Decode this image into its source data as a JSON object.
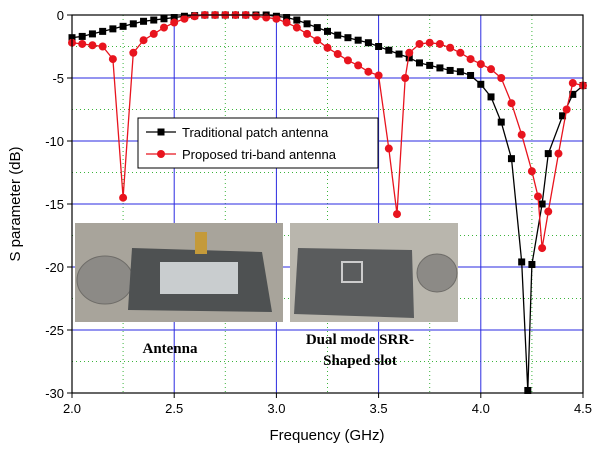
{
  "chart_data": {
    "type": "line",
    "xlabel": "Frequency (GHz)",
    "ylabel": "S parameter (dB)",
    "xlim": [
      2.0,
      4.5
    ],
    "xticks": [
      {
        "value": 2.0,
        "label": "2.0"
      },
      {
        "value": 2.5,
        "label": "2.5"
      },
      {
        "value": 3.0,
        "label": "3.0"
      },
      {
        "value": 3.5,
        "label": "3.5"
      },
      {
        "value": 4.0,
        "label": "4.0"
      },
      {
        "value": 4.5,
        "label": "4.5"
      }
    ],
    "ylim": [
      -30,
      0
    ],
    "yticks": [
      0,
      -5,
      -10,
      -15,
      -20,
      -25,
      -30
    ],
    "grid": true,
    "annotations": [
      "Antenna",
      "Dual mode SRR-",
      "Shaped slot"
    ],
    "series": [
      {
        "name": "Traditional patch antenna",
        "color": "#000000",
        "marker": "square",
        "x": [
          2.0,
          2.05,
          2.1,
          2.15,
          2.2,
          2.25,
          2.3,
          2.35,
          2.4,
          2.45,
          2.5,
          2.55,
          2.6,
          2.65,
          2.7,
          2.75,
          2.8,
          2.85,
          2.9,
          2.95,
          3.0,
          3.05,
          3.1,
          3.15,
          3.2,
          3.25,
          3.3,
          3.35,
          3.4,
          3.45,
          3.5,
          3.55,
          3.6,
          3.65,
          3.7,
          3.75,
          3.8,
          3.85,
          3.9,
          3.95,
          4.0,
          4.05,
          4.1,
          4.15,
          4.2,
          4.23,
          4.25,
          4.3,
          4.33,
          4.4,
          4.45,
          4.5
        ],
        "values": [
          -1.8,
          -1.7,
          -1.5,
          -1.3,
          -1.1,
          -0.9,
          -0.7,
          -0.5,
          -0.4,
          -0.3,
          -0.2,
          -0.1,
          -0.05,
          0,
          0,
          0,
          0,
          0,
          0,
          0,
          -0.1,
          -0.2,
          -0.4,
          -0.7,
          -1.0,
          -1.3,
          -1.6,
          -1.8,
          -2.0,
          -2.2,
          -2.5,
          -2.8,
          -3.1,
          -3.4,
          -3.8,
          -4.0,
          -4.2,
          -4.4,
          -4.5,
          -4.8,
          -5.5,
          -6.5,
          -8.5,
          -11.4,
          -19.6,
          -29.8,
          -19.8,
          -15.0,
          -11.0,
          -8.0,
          -6.3,
          -5.6
        ]
      },
      {
        "name": "Proposed tri-band antenna",
        "color": "#e8141e",
        "marker": "circle",
        "x": [
          2.0,
          2.05,
          2.1,
          2.15,
          2.2,
          2.25,
          2.3,
          2.35,
          2.4,
          2.45,
          2.5,
          2.55,
          2.6,
          2.65,
          2.7,
          2.75,
          2.8,
          2.85,
          2.9,
          2.95,
          3.0,
          3.05,
          3.1,
          3.15,
          3.2,
          3.25,
          3.3,
          3.35,
          3.4,
          3.45,
          3.5,
          3.55,
          3.59,
          3.63,
          3.65,
          3.7,
          3.75,
          3.8,
          3.85,
          3.9,
          3.95,
          4.0,
          4.05,
          4.1,
          4.15,
          4.2,
          4.25,
          4.28,
          4.3,
          4.33,
          4.38,
          4.42,
          4.45,
          4.5
        ],
        "values": [
          -2.2,
          -2.3,
          -2.4,
          -2.5,
          -3.5,
          -14.5,
          -3.0,
          -2.0,
          -1.5,
          -1.0,
          -0.6,
          -0.3,
          -0.1,
          0,
          0,
          0,
          0,
          0,
          -0.1,
          -0.2,
          -0.3,
          -0.6,
          -1.0,
          -1.5,
          -2.0,
          -2.6,
          -3.1,
          -3.6,
          -4.0,
          -4.5,
          -4.8,
          -10.6,
          -15.8,
          -5.0,
          -3.0,
          -2.3,
          -2.2,
          -2.3,
          -2.6,
          -3.0,
          -3.5,
          -3.9,
          -4.3,
          -5.0,
          -7.0,
          -9.5,
          -12.4,
          -14.4,
          -18.5,
          -15.6,
          -11.0,
          -7.5,
          -5.4,
          -5.6
        ]
      }
    ]
  }
}
